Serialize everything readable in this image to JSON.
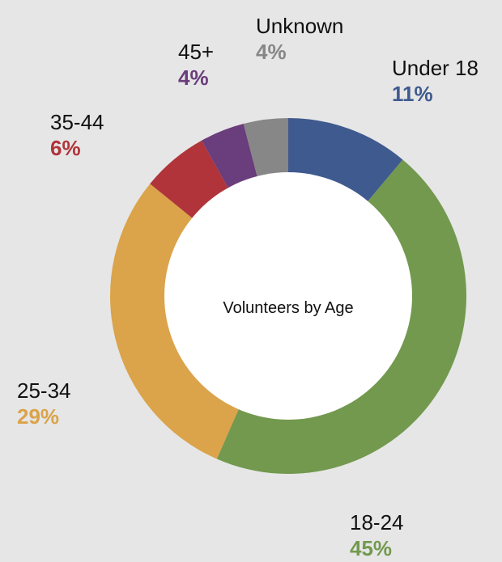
{
  "chart_data": {
    "type": "pie",
    "title": "Volunteers by Age",
    "slices": [
      {
        "label": "Under 18",
        "value": 11,
        "display": "11%",
        "color": "#3f5a8f"
      },
      {
        "label": "18-24",
        "value": 45,
        "display": "45%",
        "color": "#72994e"
      },
      {
        "label": "25-34",
        "value": 29,
        "display": "29%",
        "color": "#dba34a"
      },
      {
        "label": "35-44",
        "value": 6,
        "display": "6%",
        "color": "#b0343a"
      },
      {
        "label": "45+",
        "value": 4,
        "display": "4%",
        "color": "#6a3d7c"
      },
      {
        "label": "Unknown",
        "value": 4,
        "display": "4%",
        "color": "#878787"
      }
    ]
  }
}
